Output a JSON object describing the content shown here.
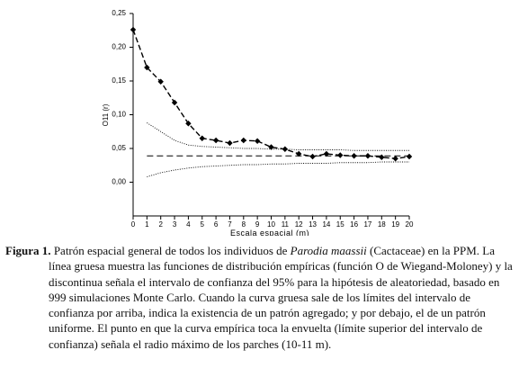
{
  "chart_data": {
    "type": "line",
    "x_label": "Escala espacial (m)",
    "y_label": "O11 (r)",
    "x": [
      0,
      1,
      2,
      3,
      4,
      5,
      6,
      7,
      8,
      9,
      10,
      11,
      12,
      13,
      14,
      15,
      16,
      17,
      18,
      19,
      20
    ],
    "xlim": [
      0,
      20
    ],
    "xticks": [
      0,
      1,
      2,
      3,
      4,
      5,
      6,
      7,
      8,
      9,
      10,
      11,
      12,
      13,
      14,
      15,
      16,
      17,
      18,
      19,
      20
    ],
    "ylim": [
      -0.05,
      0.25
    ],
    "yticks": [
      {
        "value": 0,
        "label": "0,00"
      },
      {
        "value": 0.05,
        "label": "0,05"
      },
      {
        "value": 0.1,
        "label": "0,10"
      },
      {
        "value": 0.15,
        "label": "0,15"
      },
      {
        "value": 0.2,
        "label": "0,20"
      },
      {
        "value": 0.25,
        "label": "0,25"
      }
    ],
    "series": [
      {
        "color": "#000000",
        "style": "dash-dot-markers",
        "values": [
          0.226,
          0.17,
          0.149,
          0.118,
          0.087,
          0.065,
          0.062,
          0.058,
          0.062,
          0.061,
          0.052,
          0.049,
          0.042,
          0.038,
          0.042,
          0.04,
          0.039,
          0.039,
          0.037,
          0.035,
          0.038
        ]
      },
      {
        "color": "#000000",
        "style": "dotted",
        "values": [
          null,
          0.088,
          0.075,
          0.062,
          0.055,
          0.053,
          0.052,
          0.051,
          0.05,
          0.05,
          0.049,
          0.049,
          0.048,
          0.048,
          0.048,
          0.048,
          0.047,
          0.047,
          0.047,
          0.047,
          0.047
        ]
      },
      {
        "color": "#000000",
        "style": "dashed",
        "values": [
          null,
          0.039,
          0.039,
          0.039,
          0.039,
          0.039,
          0.039,
          0.039,
          0.039,
          0.039,
          0.039,
          0.039,
          0.039,
          0.039,
          0.039,
          0.039,
          0.039,
          0.039,
          0.039,
          0.039,
          0.039
        ]
      },
      {
        "color": "#000000",
        "style": "dotted",
        "values": [
          null,
          0.008,
          0.014,
          0.018,
          0.021,
          0.023,
          0.024,
          0.025,
          0.026,
          0.026,
          0.027,
          0.027,
          0.028,
          0.028,
          0.028,
          0.029,
          0.029,
          0.029,
          0.03,
          0.03,
          0.03
        ]
      }
    ]
  },
  "caption": {
    "label": "Figura 1.",
    "text_before": "Patrón espacial general de todos los individuos de",
    "species": "Parodia maassii",
    "text_after": "(Cactaceae) en la PPM. La línea gruesa muestra las funciones de distribución empíricas (función O de Wiegand-Moloney) y la discontinua señala el intervalo de confianza del 95% para la hipótesis de aleatoriedad, basado en 999 simulaciones Monte Carlo. Cuando la curva gruesa sale de los límites del intervalo de confianza por arriba, indica la existencia de un patrón agregado; y por debajo, el de un patrón uniforme. El punto en que la curva empírica toca la envuelta (límite superior del intervalo de confianza) señala el radio máximo de los parches (10-11 m)."
  }
}
